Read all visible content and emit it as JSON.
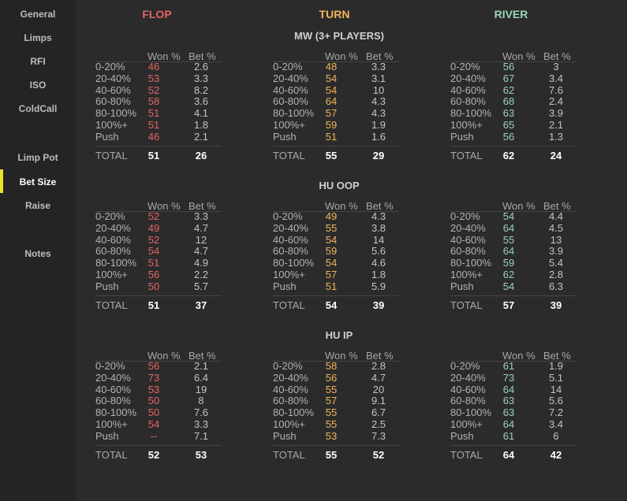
{
  "sidebar": {
    "items": [
      "General",
      "Limps",
      "RFI",
      "ISO",
      "ColdCall",
      "Limp Pot",
      "Bet Size",
      "Raise",
      "Notes"
    ],
    "active": "Bet Size",
    "indicator_color": "#e8e22c"
  },
  "streets": [
    {
      "name": "FLOP",
      "color": "#e46363"
    },
    {
      "name": "TURN",
      "color": "#f0b65c"
    },
    {
      "name": "RIVER",
      "color": "#9bd3b6"
    }
  ],
  "headers": {
    "won": "Won %",
    "bet": "Bet %",
    "total": "TOTAL"
  },
  "row_labels": [
    "0-20%",
    "20-40%",
    "40-60%",
    "60-80%",
    "80-100%",
    "100%+",
    "Push"
  ],
  "sections": [
    {
      "title": "MW (3+ PLAYERS)",
      "tables": [
        {
          "won": [
            "46",
            "53",
            "52",
            "58",
            "51",
            "51",
            "46"
          ],
          "bet": [
            "2.6",
            "3.3",
            "8.2",
            "3.6",
            "4.1",
            "1.8",
            "2.1"
          ],
          "total_won": "51",
          "total_bet": "26"
        },
        {
          "won": [
            "48",
            "54",
            "54",
            "64",
            "57",
            "59",
            "51"
          ],
          "bet": [
            "3.3",
            "3.1",
            "10",
            "4.3",
            "4.3",
            "1.9",
            "1.6"
          ],
          "total_won": "55",
          "total_bet": "29"
        },
        {
          "won": [
            "56",
            "67",
            "62",
            "68",
            "63",
            "65",
            "56"
          ],
          "bet": [
            "3",
            "3.4",
            "7.6",
            "2.4",
            "3.9",
            "2.1",
            "1.3"
          ],
          "total_won": "62",
          "total_bet": "24"
        }
      ]
    },
    {
      "title": "HU OOP",
      "tables": [
        {
          "won": [
            "52",
            "49",
            "52",
            "54",
            "51",
            "56",
            "50"
          ],
          "bet": [
            "3.3",
            "4.7",
            "12",
            "4.7",
            "4.9",
            "2.2",
            "5.7"
          ],
          "total_won": "51",
          "total_bet": "37"
        },
        {
          "won": [
            "49",
            "55",
            "54",
            "59",
            "54",
            "57",
            "51"
          ],
          "bet": [
            "4.3",
            "3.8",
            "14",
            "5.6",
            "4.6",
            "1.8",
            "5.9"
          ],
          "total_won": "54",
          "total_bet": "39"
        },
        {
          "won": [
            "54",
            "64",
            "55",
            "64",
            "59",
            "62",
            "54"
          ],
          "bet": [
            "4.4",
            "4.5",
            "13",
            "3.9",
            "5.4",
            "2.8",
            "6.3"
          ],
          "total_won": "57",
          "total_bet": "39"
        }
      ]
    },
    {
      "title": "HU IP",
      "tables": [
        {
          "won": [
            "56",
            "73",
            "53",
            "50",
            "50",
            "54",
            "--"
          ],
          "bet": [
            "2.1",
            "6.4",
            "19",
            "8",
            "7.6",
            "3.3",
            "7.1"
          ],
          "total_won": "52",
          "total_bet": "53"
        },
        {
          "won": [
            "58",
            "56",
            "55",
            "57",
            "55",
            "55",
            "53"
          ],
          "bet": [
            "2.8",
            "4.7",
            "20",
            "9.1",
            "6.7",
            "2.5",
            "7.3"
          ],
          "total_won": "55",
          "total_bet": "52"
        },
        {
          "won": [
            "61",
            "73",
            "64",
            "63",
            "63",
            "64",
            "61"
          ],
          "bet": [
            "1.9",
            "5.1",
            "14",
            "5.6",
            "7.2",
            "3.4",
            "6"
          ],
          "total_won": "64",
          "total_bet": "42"
        }
      ]
    }
  ]
}
